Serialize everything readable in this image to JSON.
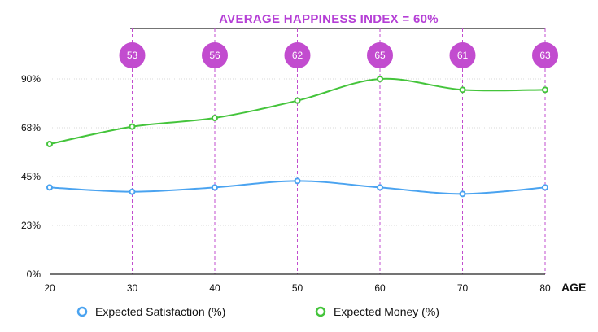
{
  "chart_data": {
    "type": "line",
    "title": "AVERAGE HAPPINESS INDEX = 60%",
    "xlabel": "AGE",
    "x": [
      20,
      30,
      40,
      50,
      60,
      70,
      80
    ],
    "x_tick_labels": [
      "20",
      "30",
      "40",
      "50",
      "60",
      "70",
      "80"
    ],
    "xlim": [
      20,
      80
    ],
    "ylim": [
      0,
      90
    ],
    "y_tick_values": [
      0,
      22.5,
      45,
      67.5,
      90
    ],
    "y_tick_labels": [
      "0%",
      "23%",
      "45%",
      "68%",
      "90%"
    ],
    "grid": true,
    "series": [
      {
        "name": "Expected Satisfaction (%)",
        "color": "#4aa3f0",
        "values": [
          40,
          38,
          40,
          43,
          40,
          37,
          40
        ]
      },
      {
        "name": "Expected Money (%)",
        "color": "#44c43b",
        "values": [
          60,
          68,
          72,
          80,
          90,
          85,
          85
        ]
      }
    ],
    "annotations": {
      "color": "#c24ccf",
      "happiness_by_age": [
        {
          "x": 30,
          "label": "53"
        },
        {
          "x": 40,
          "label": "56"
        },
        {
          "x": 50,
          "label": "62"
        },
        {
          "x": 60,
          "label": "65"
        },
        {
          "x": 70,
          "label": "61"
        },
        {
          "x": 80,
          "label": "63"
        }
      ]
    },
    "legend_position": "bottom-left"
  }
}
